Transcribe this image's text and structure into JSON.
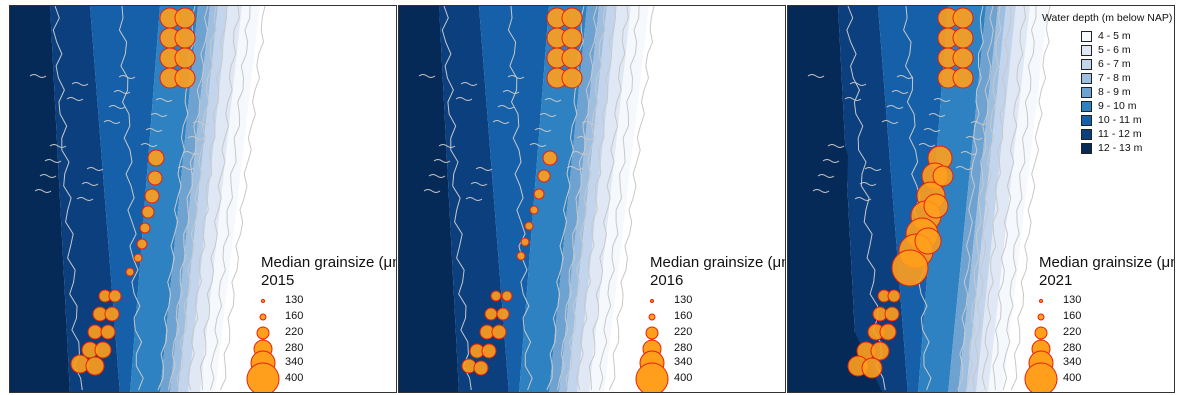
{
  "panels": [
    {
      "year": "2015",
      "grain_title": "Median grainsize (μm)"
    },
    {
      "year": "2016",
      "grain_title": "Median grainsize (μm)"
    },
    {
      "year": "2021",
      "grain_title": "Median grainsize (μm)"
    }
  ],
  "grain_legend_values": [
    "130",
    "160",
    "220",
    "280",
    "340",
    "400"
  ],
  "water_depth_legend": {
    "title": "Water depth (m below NAP)",
    "items": [
      {
        "label": "4 - 5 m",
        "color": "#f5f8fc"
      },
      {
        "label": "5 - 6 m",
        "color": "#dfe8f4"
      },
      {
        "label": "6 - 7 m",
        "color": "#c3d5ec"
      },
      {
        "label": "7 - 8 m",
        "color": "#9fbfe0"
      },
      {
        "label": "8 - 9 m",
        "color": "#6ea2d1"
      },
      {
        "label": "9 - 10 m",
        "color": "#2e82c2"
      },
      {
        "label": "10 - 11 m",
        "color": "#1560a8"
      },
      {
        "label": "11 - 12 m",
        "color": "#0b3f7e"
      },
      {
        "label": "12 - 13 m",
        "color": "#062a58"
      }
    ]
  },
  "colors": {
    "marker_fill": "#ff9f1c",
    "marker_stroke": "#e8200a",
    "contour": "#c8c8c8"
  }
}
